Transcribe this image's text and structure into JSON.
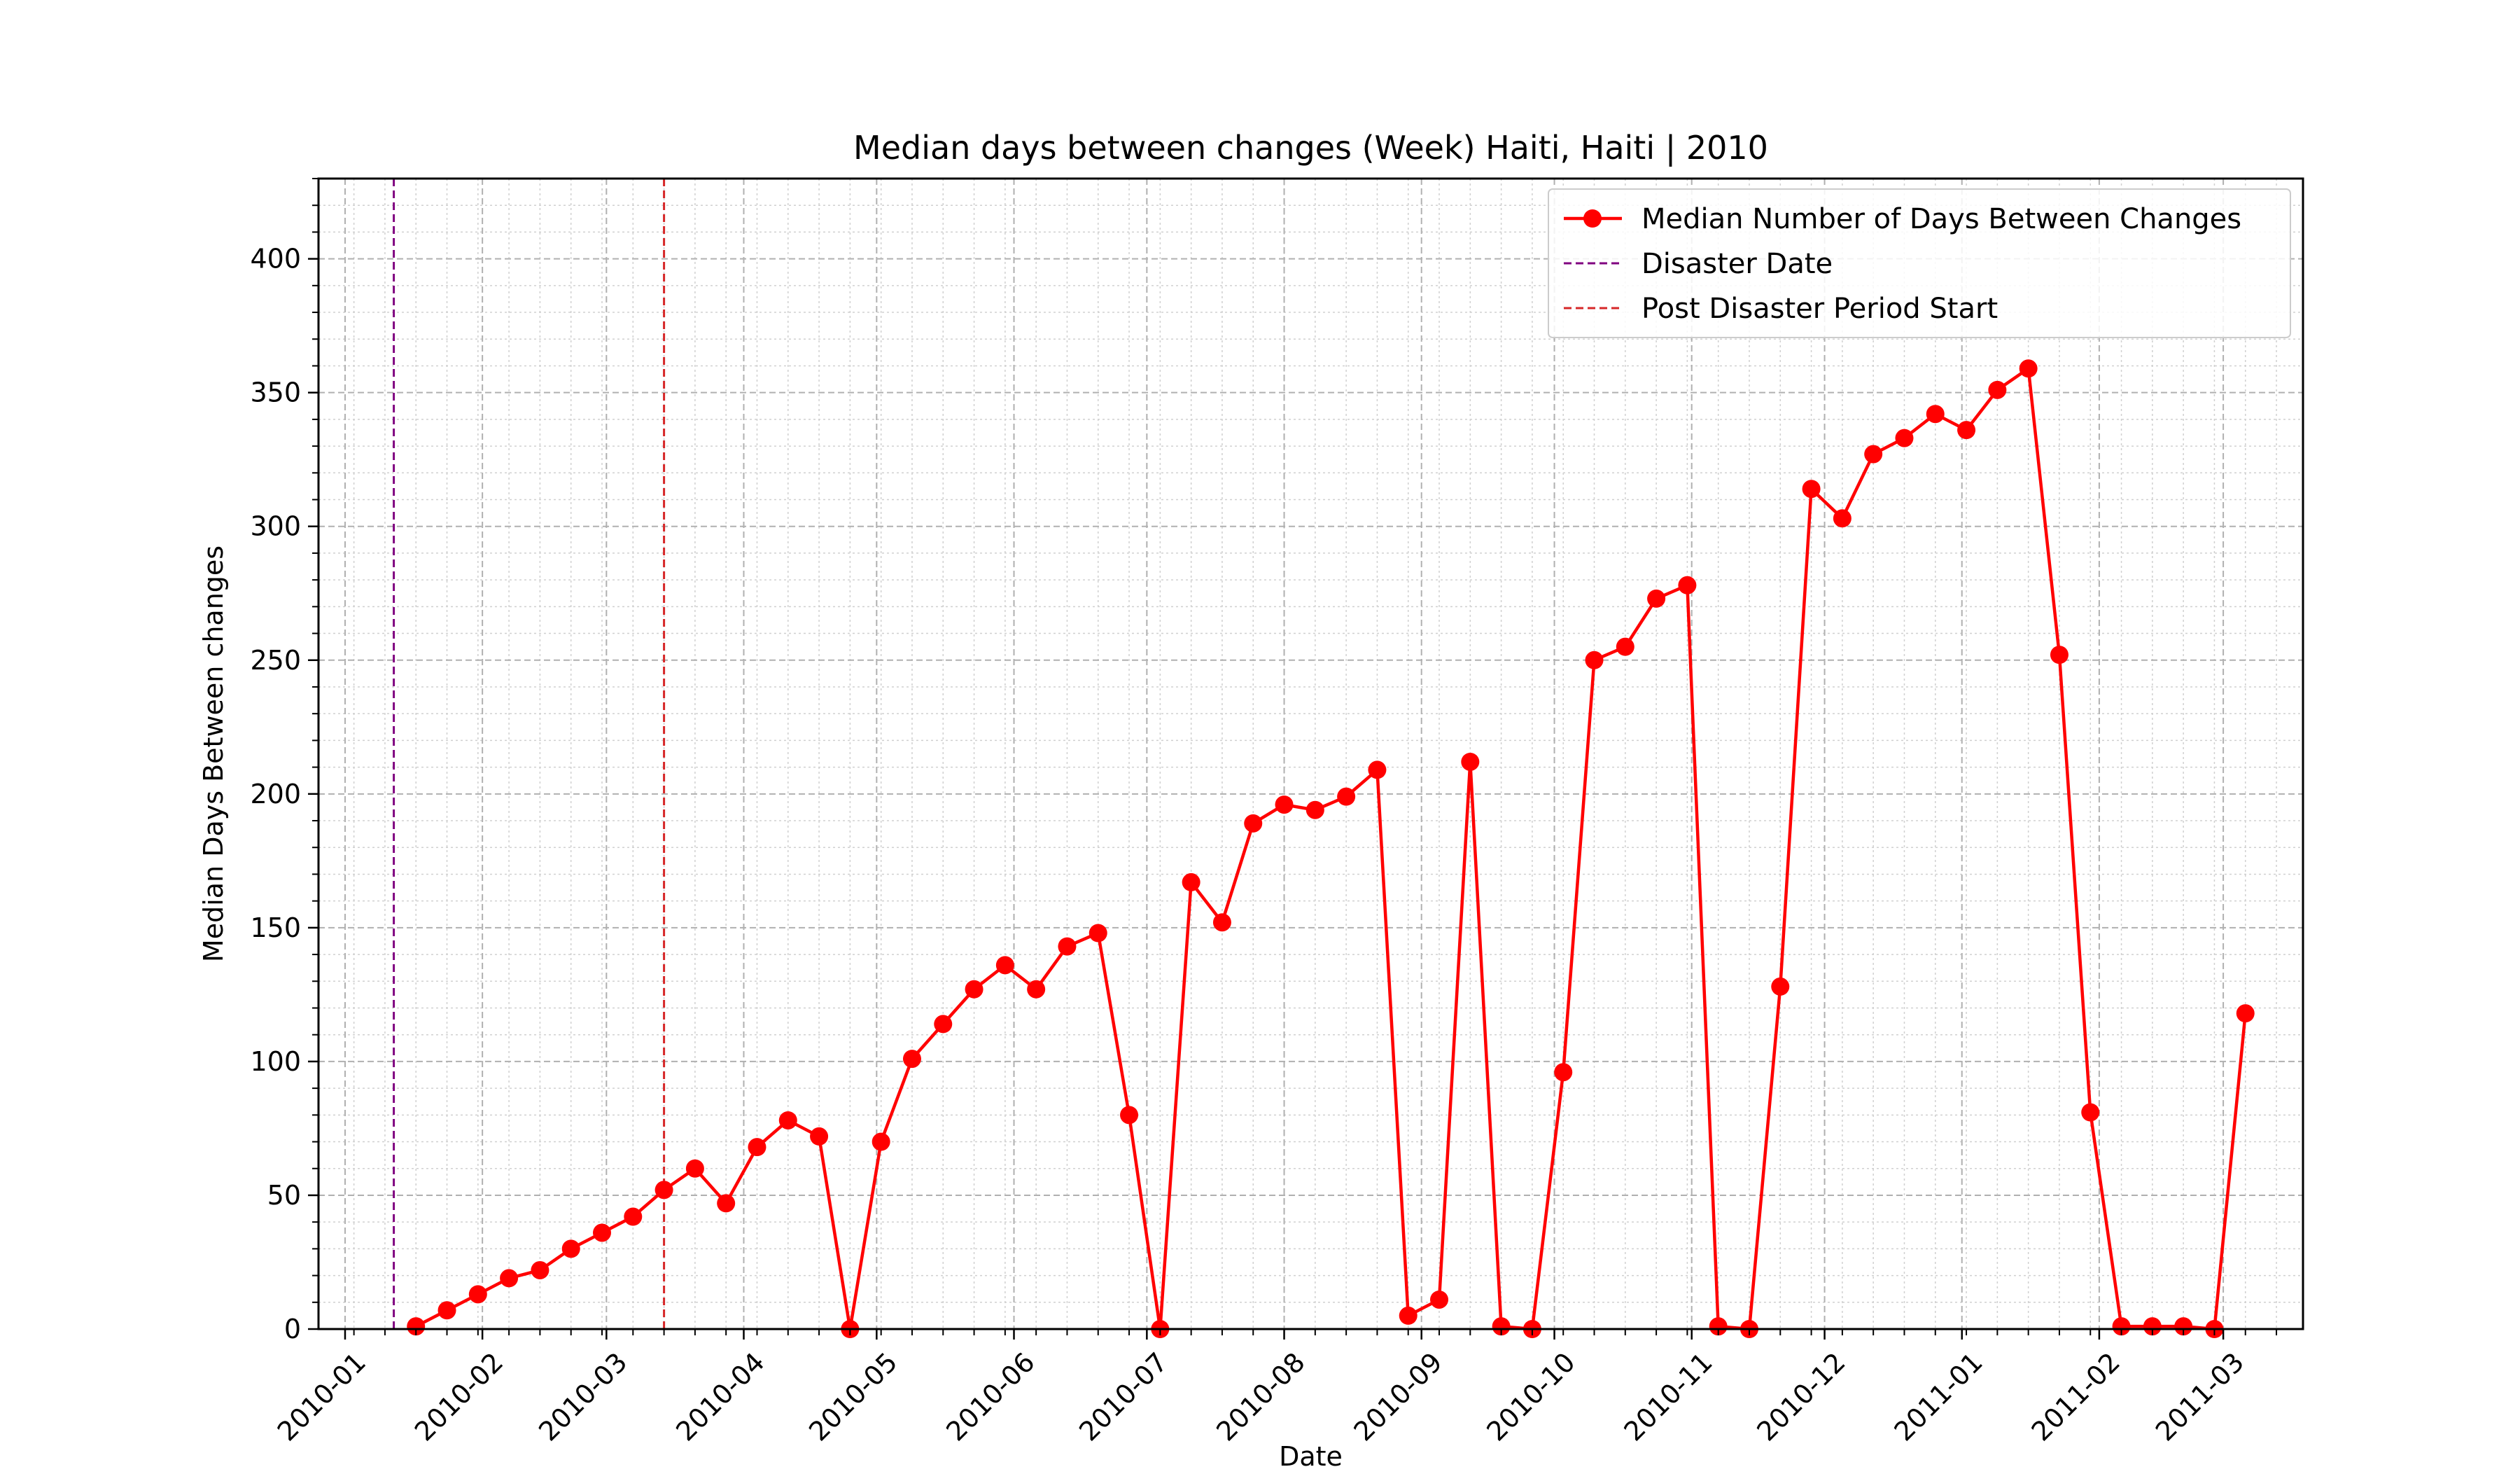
{
  "chart_data": {
    "type": "line",
    "title": "Median days between changes (Week) Haiti, Haiti | 2010",
    "xlabel": "Date",
    "ylabel": "Median Days Between changes",
    "x_axis_type": "date",
    "xlim": [
      "2009-12-26",
      "2011-03-19"
    ],
    "ylim": [
      0,
      430
    ],
    "x_ticks": [
      "2010-01-01",
      "2010-02-01",
      "2010-03-01",
      "2010-04-01",
      "2010-05-01",
      "2010-06-01",
      "2010-07-01",
      "2010-08-01",
      "2010-09-01",
      "2010-10-01",
      "2010-11-01",
      "2010-12-01",
      "2011-01-01",
      "2011-02-01",
      "2011-03-01"
    ],
    "x_tick_labels": [
      "2010-01",
      "2010-02",
      "2010-03",
      "2010-04",
      "2010-05",
      "2010-06",
      "2010-07",
      "2010-08",
      "2010-09",
      "2010-10",
      "2010-11",
      "2010-12",
      "2011-01",
      "2011-02",
      "2011-03"
    ],
    "y_ticks": [
      0,
      50,
      100,
      150,
      200,
      250,
      300,
      350,
      400
    ],
    "y_tick_labels": [
      "0",
      "50",
      "100",
      "150",
      "200",
      "250",
      "300",
      "350",
      "400"
    ],
    "grid": true,
    "minor_grid": true,
    "legend_position": "top-right",
    "series": [
      {
        "name": "Median Number of Days Between Changes",
        "color": "#ff0000",
        "marker": "circle",
        "x": [
          "2010-01-17",
          "2010-01-24",
          "2010-01-31",
          "2010-02-07",
          "2010-02-14",
          "2010-02-21",
          "2010-02-28",
          "2010-03-07",
          "2010-03-14",
          "2010-03-21",
          "2010-03-28",
          "2010-04-04",
          "2010-04-11",
          "2010-04-18",
          "2010-04-25",
          "2010-05-02",
          "2010-05-09",
          "2010-05-16",
          "2010-05-23",
          "2010-05-30",
          "2010-06-06",
          "2010-06-13",
          "2010-06-20",
          "2010-06-27",
          "2010-07-04",
          "2010-07-11",
          "2010-07-18",
          "2010-07-25",
          "2010-08-01",
          "2010-08-08",
          "2010-08-15",
          "2010-08-22",
          "2010-08-29",
          "2010-09-05",
          "2010-09-12",
          "2010-09-19",
          "2010-09-26",
          "2010-10-03",
          "2010-10-10",
          "2010-10-17",
          "2010-10-24",
          "2010-10-31",
          "2010-11-07",
          "2010-11-14",
          "2010-11-21",
          "2010-11-28",
          "2010-12-05",
          "2010-12-12",
          "2010-12-19",
          "2010-12-26",
          "2011-01-02",
          "2011-01-09",
          "2011-01-16",
          "2011-01-23",
          "2011-01-30",
          "2011-02-06",
          "2011-02-13",
          "2011-02-20",
          "2011-02-27",
          "2011-03-06"
        ],
        "y": [
          1,
          7,
          13,
          19,
          22,
          30,
          36,
          42,
          52,
          60,
          47,
          68,
          78,
          72,
          0,
          70,
          101,
          114,
          127,
          136,
          127,
          143,
          148,
          80,
          0,
          167,
          152,
          189,
          196,
          194,
          199,
          209,
          5,
          11,
          212,
          1,
          0,
          96,
          250,
          255,
          273,
          278,
          1,
          0,
          128,
          314,
          303,
          327,
          333,
          342,
          336,
          351,
          359,
          252,
          81,
          1,
          1,
          1,
          0,
          118
        ]
      }
    ],
    "vlines": [
      {
        "name": "Disaster Date",
        "x": "2010-01-12",
        "color": "#800080",
        "style": "dashed"
      },
      {
        "name": "Post Disaster Period Start",
        "x": "2010-03-14",
        "color": "#d62728",
        "style": "dashed"
      }
    ]
  }
}
